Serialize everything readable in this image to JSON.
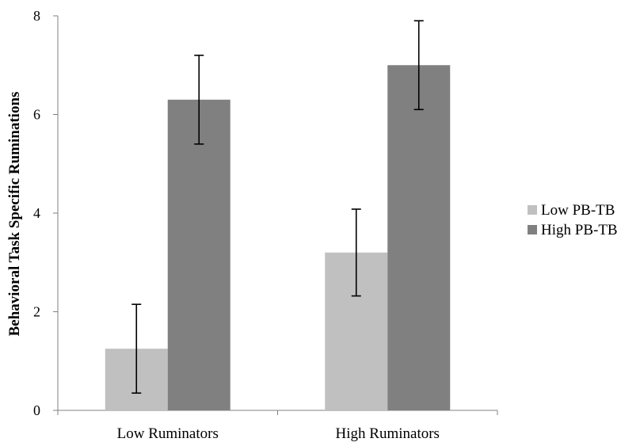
{
  "chart_data": {
    "type": "bar",
    "categories": [
      "Low Ruminators",
      "High Ruminators"
    ],
    "series": [
      {
        "name": "Low PB-TB",
        "values": [
          1.25,
          3.2
        ],
        "error": [
          0.9,
          0.88
        ],
        "color": "#c0c0c0"
      },
      {
        "name": "High PB-TB",
        "values": [
          6.3,
          7.0
        ],
        "error": [
          0.9,
          0.9
        ],
        "color": "#808080"
      }
    ],
    "title": "",
    "xlabel": "",
    "ylabel": "Behavioral Task Specific Ruminations",
    "ylim": [
      0,
      8
    ],
    "yticks": [
      0,
      2,
      4,
      6,
      8
    ],
    "grid": false,
    "legend_position": "right"
  }
}
